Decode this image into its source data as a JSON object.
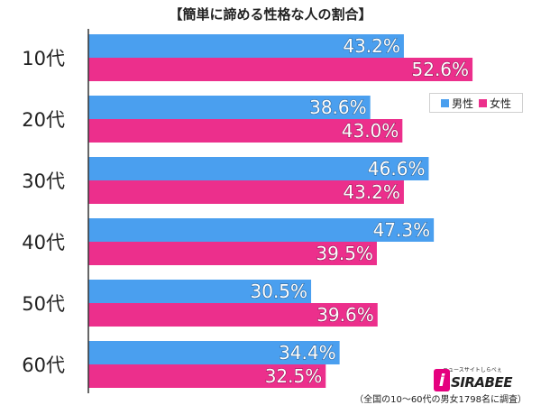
{
  "title": "【簡単に諦める性格な人の割合】",
  "colors": {
    "male": "#4a9fef",
    "female": "#ec2f8c"
  },
  "legend": {
    "male_icon": "square-swatch",
    "female_icon": "square-swatch",
    "male_label": "男性",
    "female_label": "女性"
  },
  "chart_data": {
    "type": "bar",
    "orientation": "horizontal",
    "title": "【簡単に諦める性格な人の割合】",
    "categories": [
      "10代",
      "20代",
      "30代",
      "40代",
      "50代",
      "60代"
    ],
    "series": [
      {
        "name": "男性",
        "values": [
          43.2,
          38.6,
          46.6,
          47.3,
          30.5,
          34.4
        ],
        "labels": [
          "43.2%",
          "38.6%",
          "46.6%",
          "47.3%",
          "30.5%",
          "34.4%"
        ]
      },
      {
        "name": "女性",
        "values": [
          52.6,
          43.0,
          43.2,
          39.5,
          39.6,
          32.5
        ],
        "labels": [
          "52.6%",
          "43.0%",
          "43.2%",
          "39.5%",
          "39.6%",
          "32.5%"
        ]
      }
    ],
    "xlim": [
      0,
      60
    ],
    "legend_position": "top-right",
    "grid": false
  },
  "logo": {
    "tagline": "ニュースサイトしらべぇ",
    "mark": "i",
    "wordmark": "SIRABEE"
  },
  "footnote": "（全国の10～60代の男女1798名に調査）"
}
